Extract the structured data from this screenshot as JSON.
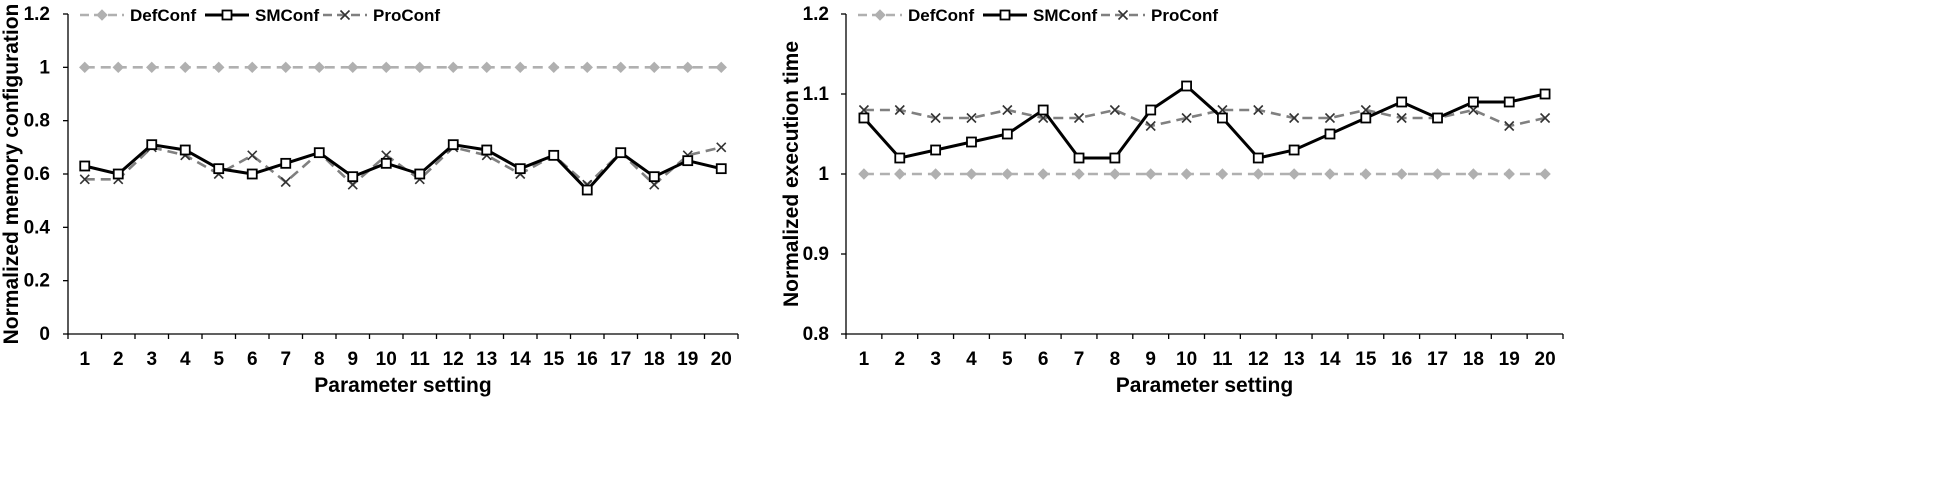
{
  "chart_data": [
    {
      "type": "line",
      "xlabel": "Parameter setting",
      "ylabel": "Normalized memory configuration",
      "ylim": [
        0,
        1.2
      ],
      "y_ticks": [
        0,
        0.2,
        0.4,
        0.6,
        0.8,
        1,
        1.2
      ],
      "y_tick_labels": [
        "0",
        "0.2",
        "0.4",
        "0.6",
        "0.8",
        "1",
        "1.2"
      ],
      "categories": [
        "1",
        "2",
        "3",
        "4",
        "5",
        "6",
        "7",
        "8",
        "9",
        "10",
        "11",
        "12",
        "13",
        "14",
        "15",
        "16",
        "17",
        "18",
        "19",
        "20"
      ],
      "grid": false,
      "legend_position": "top",
      "series": [
        {
          "name": "DefConf",
          "color": "#b0b0b0",
          "dash": true,
          "marker": "diamond",
          "values": [
            1,
            1,
            1,
            1,
            1,
            1,
            1,
            1,
            1,
            1,
            1,
            1,
            1,
            1,
            1,
            1,
            1,
            1,
            1,
            1
          ]
        },
        {
          "name": "SMConf",
          "color": "#000000",
          "dash": false,
          "marker": "square",
          "values": [
            0.63,
            0.6,
            0.71,
            0.69,
            0.62,
            0.6,
            0.64,
            0.68,
            0.59,
            0.64,
            0.6,
            0.71,
            0.69,
            0.62,
            0.67,
            0.54,
            0.68,
            0.59,
            0.65,
            0.62
          ]
        },
        {
          "name": "ProConf",
          "color": "#808080",
          "dash": true,
          "marker": "x",
          "values": [
            0.58,
            0.58,
            0.7,
            0.67,
            0.6,
            0.67,
            0.57,
            0.68,
            0.56,
            0.67,
            0.58,
            0.7,
            0.67,
            0.6,
            0.67,
            0.56,
            0.68,
            0.56,
            0.67,
            0.7
          ]
        }
      ]
    },
    {
      "type": "line",
      "xlabel": "Parameter setting",
      "ylabel": "Normalized execution time",
      "ylim": [
        0.8,
        1.2
      ],
      "y_ticks": [
        0.8,
        0.9,
        1,
        1.1,
        1.2
      ],
      "y_tick_labels": [
        "0.8",
        "0.9",
        "1",
        "1.1",
        "1.2"
      ],
      "categories": [
        "1",
        "2",
        "3",
        "4",
        "5",
        "6",
        "7",
        "8",
        "9",
        "10",
        "11",
        "12",
        "13",
        "14",
        "15",
        "16",
        "17",
        "18",
        "19",
        "20"
      ],
      "grid": false,
      "legend_position": "top",
      "series": [
        {
          "name": "DefConf",
          "color": "#b0b0b0",
          "dash": true,
          "marker": "diamond",
          "values": [
            1,
            1,
            1,
            1,
            1,
            1,
            1,
            1,
            1,
            1,
            1,
            1,
            1,
            1,
            1,
            1,
            1,
            1,
            1,
            1
          ]
        },
        {
          "name": "SMConf",
          "color": "#000000",
          "dash": false,
          "marker": "square",
          "values": [
            1.07,
            1.02,
            1.03,
            1.04,
            1.05,
            1.08,
            1.02,
            1.02,
            1.08,
            1.11,
            1.07,
            1.02,
            1.03,
            1.05,
            1.07,
            1.09,
            1.07,
            1.09,
            1.09,
            1.1
          ]
        },
        {
          "name": "ProConf",
          "color": "#808080",
          "dash": true,
          "marker": "x",
          "values": [
            1.08,
            1.08,
            1.07,
            1.07,
            1.08,
            1.07,
            1.07,
            1.08,
            1.06,
            1.07,
            1.08,
            1.08,
            1.07,
            1.07,
            1.08,
            1.07,
            1.07,
            1.08,
            1.06,
            1.07
          ]
        }
      ]
    }
  ]
}
